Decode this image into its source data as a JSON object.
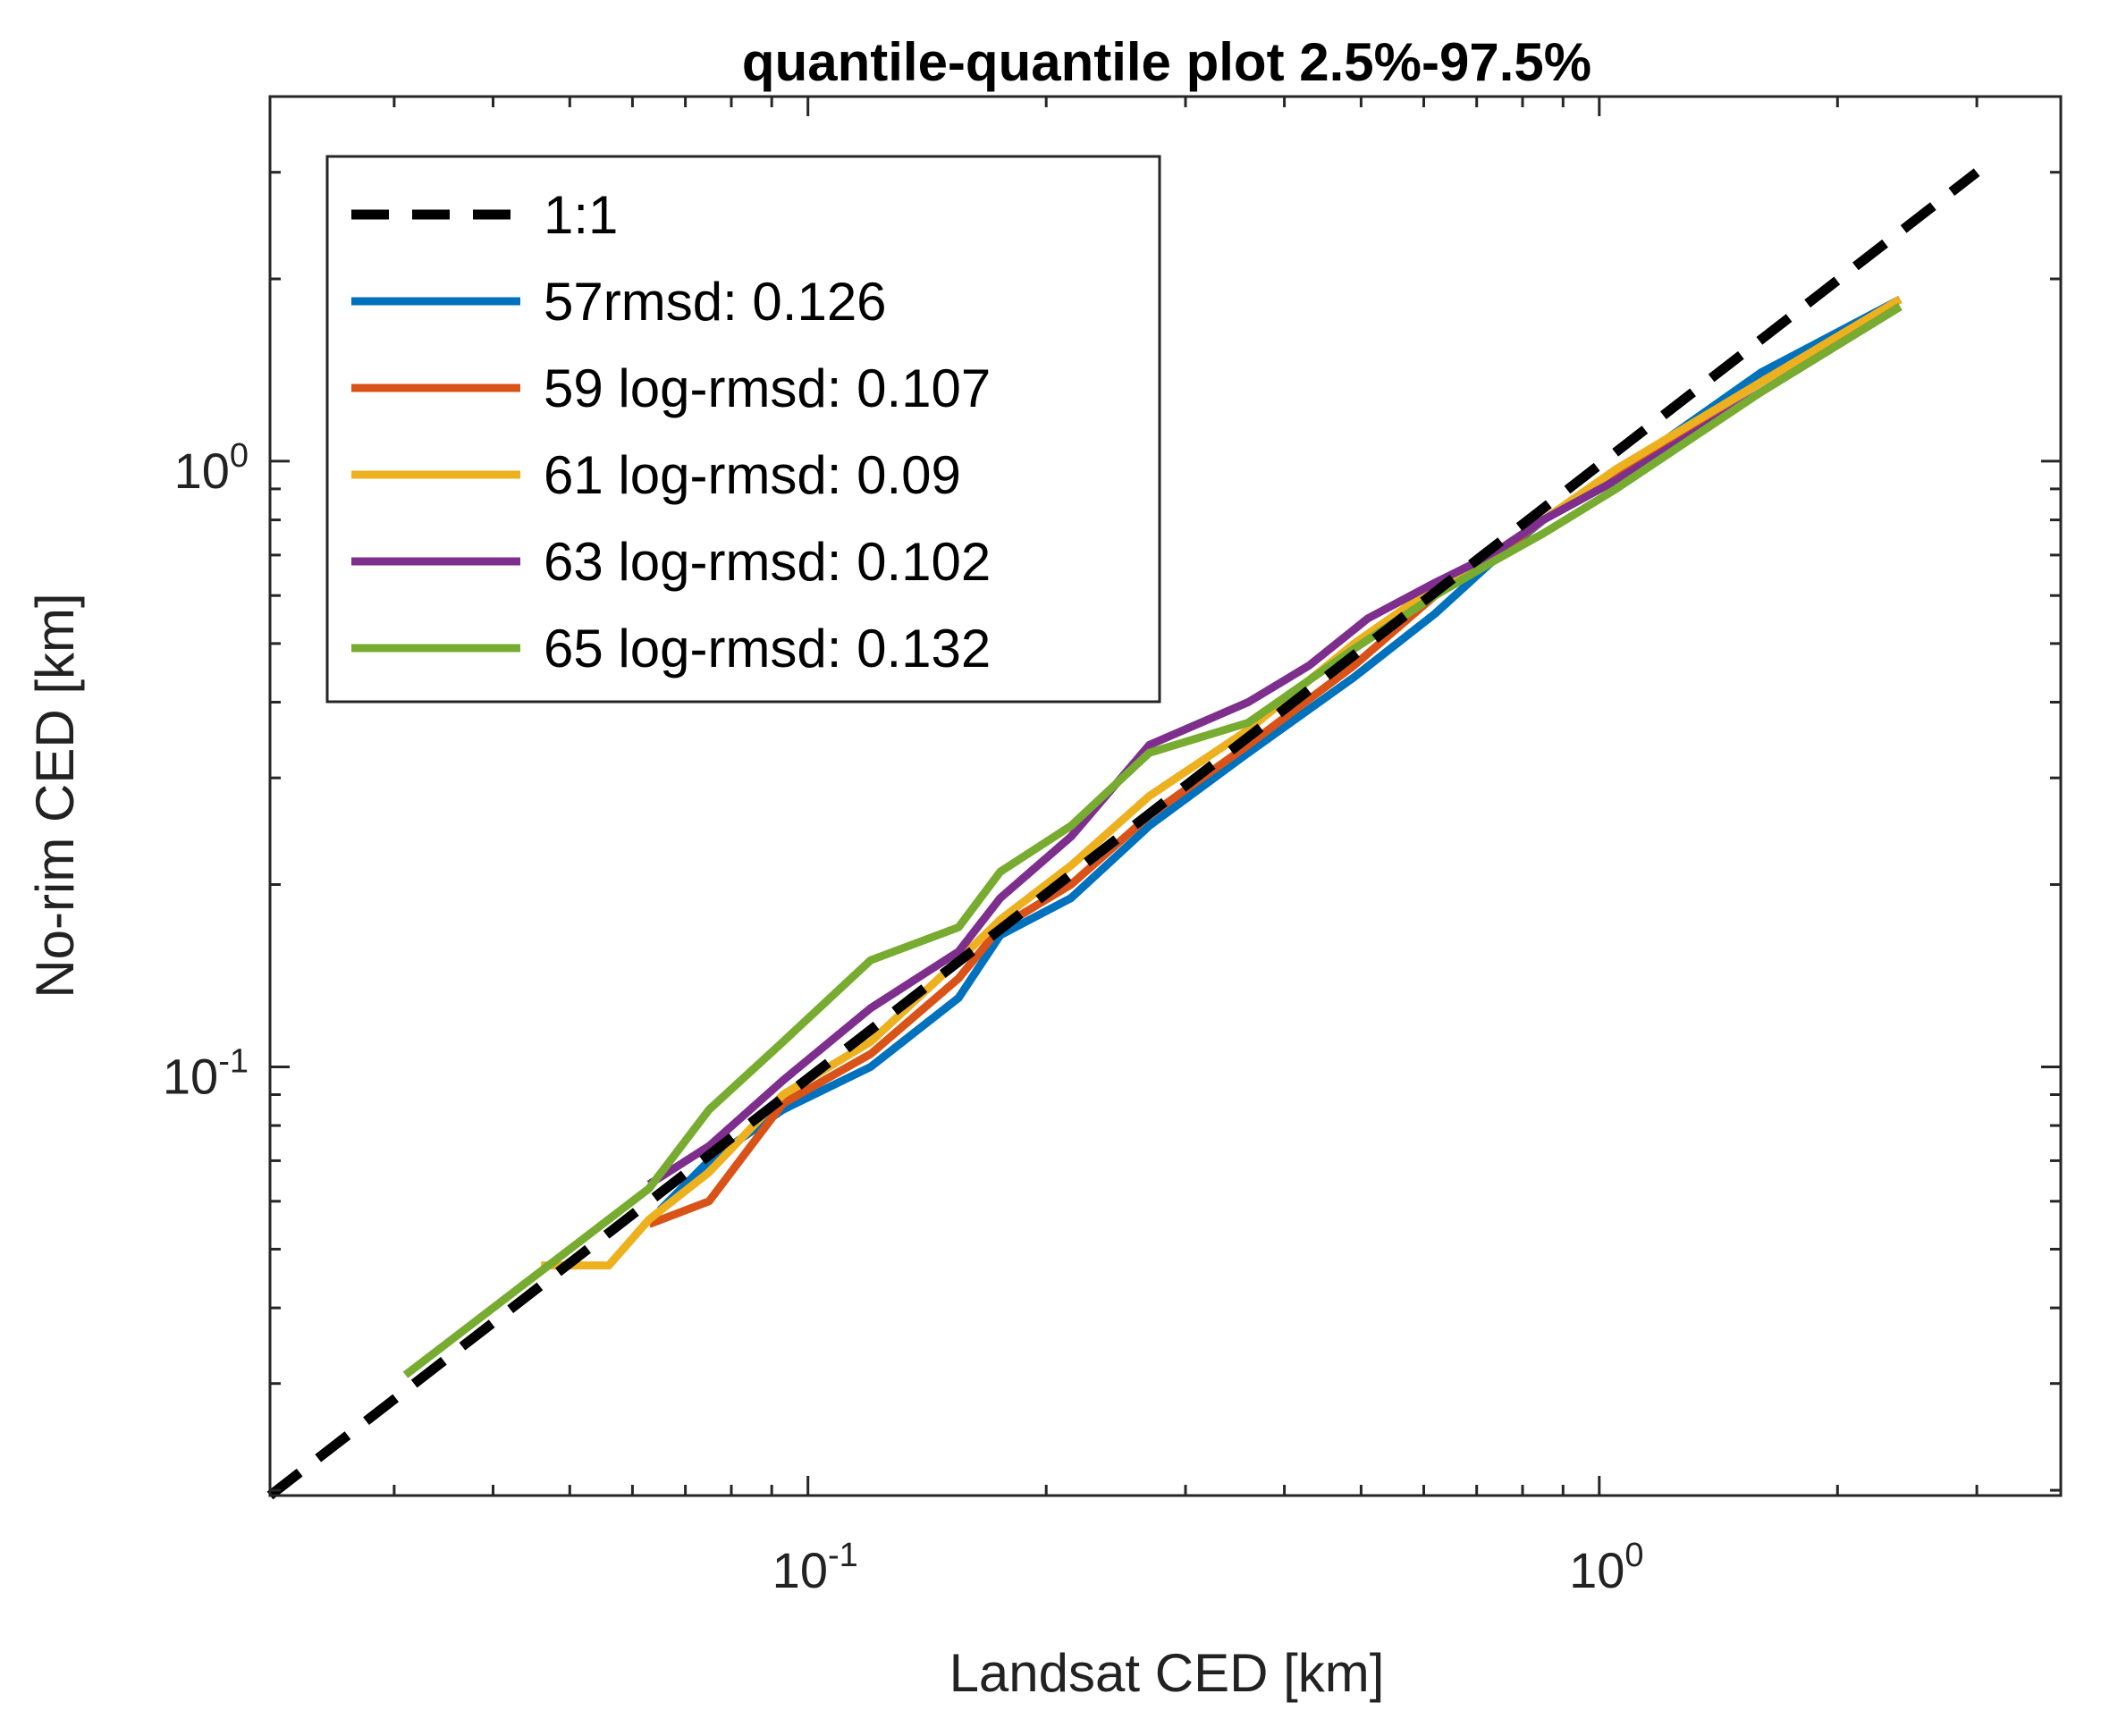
{
  "chart_data": {
    "type": "line",
    "title": "quantile-quantile plot 2.5%-97.5%",
    "xlabel": "Landsat CED [km]",
    "ylabel": "No-rim CED [km]",
    "xscale": "log",
    "yscale": "log",
    "xlim": [
      0.0209,
      3.83
    ],
    "ylim": [
      0.0196,
      4.0
    ],
    "xticks": [
      {
        "value": 0.1,
        "base": "10",
        "exp": "-1"
      },
      {
        "value": 1,
        "base": "10",
        "exp": "0"
      }
    ],
    "yticks": [
      {
        "value": 0.1,
        "base": "10",
        "exp": "-1"
      },
      {
        "value": 1,
        "base": "10",
        "exp": "0"
      }
    ],
    "grid": false,
    "legend_position": "top-left",
    "series": [
      {
        "name": "1:1",
        "color": "#000000",
        "style": "dashed",
        "x": [
          0.0209,
          3.0
        ],
        "y": [
          0.0196,
          3.0
        ]
      },
      {
        "name": "57rmsd: 0.126",
        "color": "#0072BD",
        "style": "solid",
        "x": [
          0.065,
          0.075,
          0.093,
          0.12,
          0.155,
          0.175,
          0.215,
          0.27,
          0.36,
          0.49,
          0.62,
          0.73,
          0.85,
          1.05,
          1.6,
          2.4
        ],
        "y": [
          0.058,
          0.07,
          0.085,
          0.1,
          0.13,
          0.165,
          0.19,
          0.25,
          0.33,
          0.44,
          0.56,
          0.68,
          0.8,
          0.95,
          1.4,
          1.85
        ]
      },
      {
        "name": "59 log-rmsd: 0.107",
        "color": "#D95319",
        "style": "solid",
        "x": [
          0.063,
          0.075,
          0.093,
          0.12,
          0.155,
          0.175,
          0.215,
          0.27,
          0.36,
          0.49,
          0.62,
          0.73,
          0.85,
          1.05,
          1.6,
          2.4
        ],
        "y": [
          0.055,
          0.06,
          0.087,
          0.105,
          0.14,
          0.17,
          0.2,
          0.26,
          0.34,
          0.46,
          0.6,
          0.69,
          0.8,
          0.96,
          1.35,
          1.85
        ]
      },
      {
        "name": "61 log-rmsd: 0.09",
        "color": "#EDB120",
        "style": "solid",
        "x": [
          0.046,
          0.056,
          0.063,
          0.075,
          0.093,
          0.12,
          0.155,
          0.175,
          0.215,
          0.27,
          0.36,
          0.49,
          0.62,
          0.73,
          0.85,
          1.05,
          1.6,
          2.4
        ],
        "y": [
          0.047,
          0.047,
          0.056,
          0.067,
          0.09,
          0.11,
          0.15,
          0.175,
          0.215,
          0.28,
          0.36,
          0.5,
          0.62,
          0.7,
          0.8,
          0.97,
          1.35,
          1.85
        ]
      },
      {
        "name": "63 log-rmsd: 0.102",
        "color": "#7E2F8E",
        "style": "solid",
        "x": [
          0.063,
          0.075,
          0.093,
          0.12,
          0.155,
          0.175,
          0.215,
          0.27,
          0.36,
          0.43,
          0.51,
          0.62,
          0.73,
          0.85,
          1.05,
          1.6,
          2.4
        ],
        "y": [
          0.064,
          0.074,
          0.095,
          0.125,
          0.155,
          0.19,
          0.24,
          0.34,
          0.4,
          0.46,
          0.55,
          0.63,
          0.7,
          0.8,
          0.93,
          1.3,
          1.8
        ]
      },
      {
        "name": "65 log-rmsd: 0.132",
        "color": "#77AC30",
        "style": "solid",
        "x": [
          0.031,
          0.046,
          0.063,
          0.075,
          0.093,
          0.12,
          0.155,
          0.175,
          0.215,
          0.27,
          0.36,
          0.49,
          0.62,
          0.73,
          0.85,
          1.05,
          1.6,
          2.4
        ],
        "y": [
          0.031,
          0.046,
          0.063,
          0.085,
          0.11,
          0.15,
          0.17,
          0.21,
          0.25,
          0.33,
          0.37,
          0.49,
          0.6,
          0.68,
          0.76,
          0.9,
          1.3,
          1.8
        ]
      }
    ]
  }
}
